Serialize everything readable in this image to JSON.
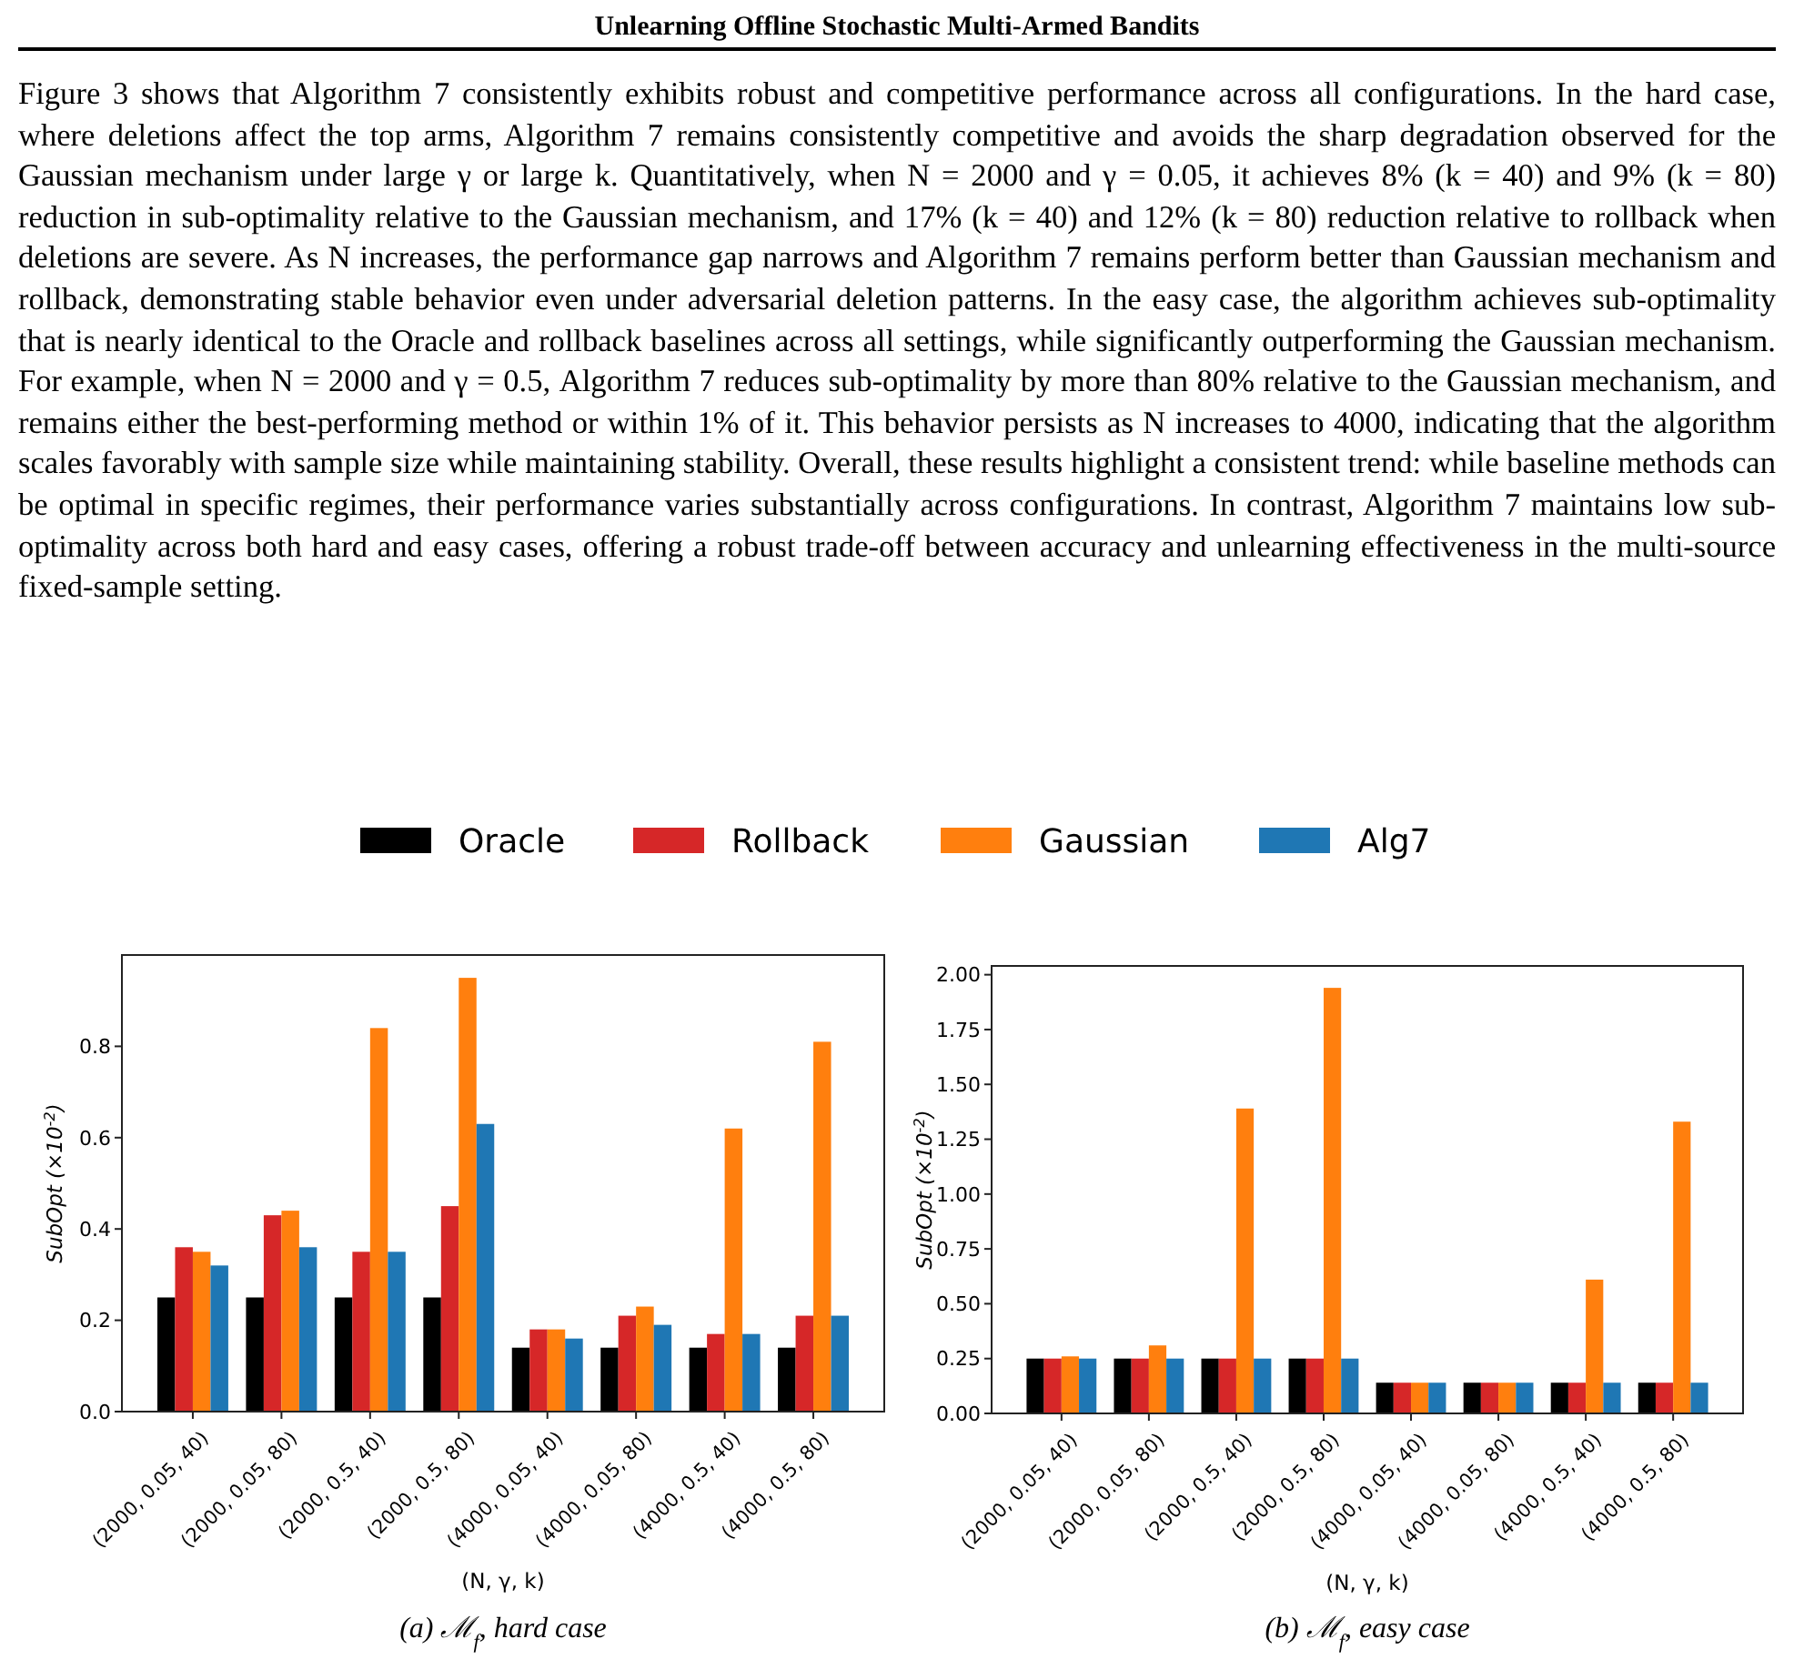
{
  "chart_data": [
    {
      "type": "bar",
      "title": "(a) ℳ$_{f}$, hard case",
      "xlabel": "(N, γ, k)",
      "ylabel": "SubOpt (×10$^{-2}$)",
      "annotations": [
        "Unlearning Offline Stochastic Multi-Armed Bandits",
        "Figure 3 shows that Algorithm 7 consistently exhibits robust and competitive performance across all configurations. In the hard case, where deletions affect the top arms, Algorithm 7 remains consistently competitive and avoids the sharp degradation observed for the Gaussian mechanism under large γ or large k. Quantitatively, when N = 2000 and γ = 0.05, it achieves 8% (k = 40) and 9% (k = 80) reduction in sub-optimality relative to the Gaussian mechanism, and 17% (k = 40) and 12% (k = 80) reduction relative to rollback when deletions are severe. As N increases, the performance gap narrows and Algorithm 7 remains perform better than Gaussian mechanism and rollback, demonstrating stable behavior even under adversarial deletion patterns. In the easy case, the algorithm achieves sub-optimality that is nearly identical to the Oracle and rollback baselines across all settings, while significantly outperforming the Gaussian mechanism. For example, when N = 2000 and γ = 0.5, Algorithm 7 reduces sub-optimality by more than 80% relative to the Gaussian mechanism, and remains either the best-performing method or within 1% of it. This behavior persists as N increases to 4000, indicating that the algorithm scales favorably with sample size while maintaining stability. Overall, these results highlight a consistent trend: while baseline methods can be optimal in specific regimes, their performance varies substantially across configurations. In contrast, Algorithm 7 maintains low sub-optimality across both hard and easy cases, offering a robust trade-off between accuracy and unlearning effectiveness in the multi-source fixed-sample setting."
      ],
      "categories": [
        "(2000, 0.05, 40)",
        "(2000, 0.05, 80)",
        "(2000, 0.5, 40)",
        "(2000, 0.5, 80)",
        "(4000, 0.05, 40)",
        "(4000, 0.05, 80)",
        "(4000, 0.5, 40)",
        "(4000, 0.5, 80)"
      ],
      "series": [
        {
          "name": "Oracle",
          "color": "#000000",
          "values": [
            0.25,
            0.25,
            0.25,
            0.25,
            0.14,
            0.14,
            0.14,
            0.14
          ]
        },
        {
          "name": "Rollback",
          "color": "#d62728",
          "values": [
            0.36,
            0.43,
            0.35,
            0.45,
            0.18,
            0.21,
            0.17,
            0.21
          ]
        },
        {
          "name": "Gaussian",
          "color": "#ff7f0e",
          "values": [
            0.35,
            0.44,
            0.84,
            0.95,
            0.18,
            0.23,
            0.62,
            0.81
          ]
        },
        {
          "name": "Alg7",
          "color": "#1f77b4",
          "values": [
            0.32,
            0.36,
            0.35,
            0.63,
            0.16,
            0.19,
            0.17,
            0.21
          ]
        }
      ],
      "ylim": [
        0,
        1.0
      ],
      "yticks": [
        {
          "value": 0,
          "label": "0.0"
        },
        0.2,
        0.4,
        0.6,
        0.8
      ],
      "legend": "top"
    },
    {
      "type": "bar",
      "title": "(b) ℳ$_{f}$, easy case",
      "xlabel": "(N, γ, k)",
      "ylabel": "SubOpt (×10$^{-2}$)",
      "categories": [
        "(2000, 0.05, 40)",
        "(2000, 0.05, 80)",
        "(2000, 0.5, 40)",
        "(2000, 0.5, 80)",
        "(4000, 0.05, 40)",
        "(4000, 0.05, 80)",
        "(4000, 0.5, 40)",
        "(4000, 0.5, 80)"
      ],
      "series": [
        {
          "color": "#000000",
          "values": [
            0.25,
            0.25,
            0.25,
            0.25,
            0.14,
            0.14,
            0.14,
            0.14
          ]
        },
        {
          "color": "#d62728",
          "values": [
            0.25,
            0.25,
            0.25,
            0.25,
            0.14,
            0.14,
            0.14,
            0.14
          ]
        },
        {
          "color": "#ff7f0e",
          "values": [
            0.26,
            0.31,
            1.39,
            1.94,
            0.14,
            0.14,
            0.61,
            1.33
          ]
        },
        {
          "color": "#1f77b4",
          "values": [
            0.25,
            0.25,
            0.25,
            0.25,
            0.14,
            0.14,
            0.14,
            0.14
          ]
        }
      ],
      "ylim": [
        0,
        2.04
      ],
      "yticks": [
        {
          "value": 0,
          "label": "0.00"
        },
        {
          "value": 0.25,
          "label": "0.25"
        },
        {
          "value": 0.5,
          "label": "0.50"
        },
        {
          "value": 0.75,
          "label": "0.75"
        },
        {
          "value": 1,
          "label": "1.00"
        },
        {
          "value": 1.25,
          "label": "1.25"
        },
        {
          "value": 1.5,
          "label": "1.50"
        },
        {
          "value": 1.75,
          "label": "1.75"
        },
        {
          "value": 2,
          "label": "2.00"
        }
      ]
    }
  ]
}
